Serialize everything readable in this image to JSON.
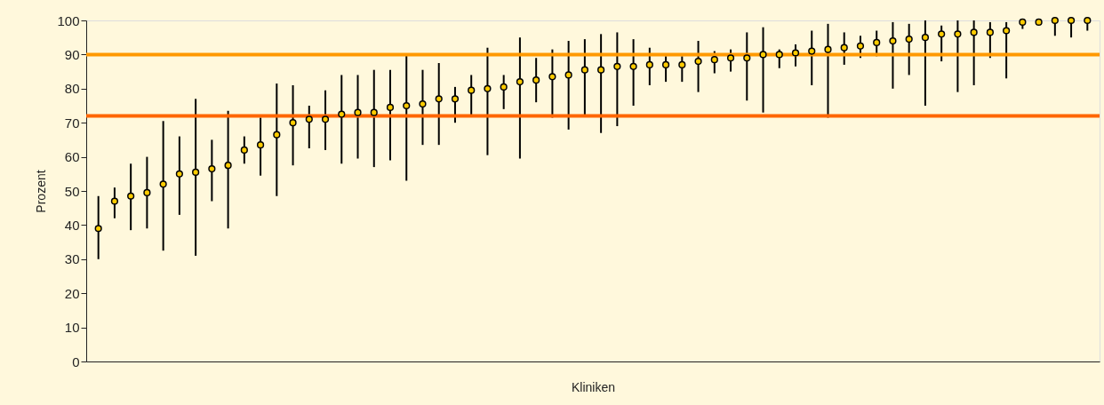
{
  "chart_data": {
    "type": "scatter",
    "xlabel": "Kliniken",
    "ylabel": "Prozent",
    "categories": [
      null,
      null,
      null,
      null,
      null,
      null,
      null,
      null,
      null,
      null,
      null,
      null,
      null,
      null,
      null,
      null,
      null,
      null,
      null,
      null,
      null,
      null,
      null,
      null,
      null,
      null,
      null,
      null,
      null,
      null,
      null,
      null,
      null,
      null,
      null,
      null,
      null,
      null,
      null,
      null,
      null,
      null,
      null,
      null,
      null,
      null,
      null,
      null,
      null,
      null,
      null,
      null,
      null,
      null,
      null,
      null,
      null,
      null,
      null,
      null,
      null,
      null
    ],
    "series": [
      {
        "color": "#ffcc00",
        "values": [
          39,
          47,
          48.5,
          49.5,
          52,
          55,
          55.5,
          56.5,
          57.5,
          62,
          63.5,
          66.5,
          70,
          71,
          71,
          72.5,
          73,
          73,
          74.5,
          75,
          75.5,
          77,
          77,
          79.5,
          80,
          80.5,
          82,
          82.5,
          83.5,
          84,
          85.5,
          85.5,
          86.5,
          86.5,
          87,
          87,
          87,
          88,
          88.5,
          89,
          89,
          90,
          90,
          90.5,
          91,
          91.5,
          92,
          92.5,
          93.5,
          94,
          94.5,
          95,
          96,
          96,
          96.5,
          96.5,
          97,
          99.5,
          99.5,
          100,
          100,
          100
        ],
        "errors": [
          [
            30,
            48.5
          ],
          [
            42,
            51
          ],
          [
            38.5,
            58
          ],
          [
            39,
            60
          ],
          [
            32.5,
            70.5
          ],
          [
            43,
            66
          ],
          [
            31,
            77
          ],
          [
            47,
            65
          ],
          [
            39,
            73.5
          ],
          [
            58,
            66
          ],
          [
            54.5,
            71.5
          ],
          [
            48.5,
            81.5
          ],
          [
            57.5,
            81
          ],
          [
            62.5,
            75
          ],
          [
            62,
            79.5
          ],
          [
            58,
            84
          ],
          [
            59.5,
            84
          ],
          [
            57,
            85.5
          ],
          [
            59,
            85.5
          ],
          [
            53,
            90
          ],
          [
            63.5,
            85.5
          ],
          [
            63.5,
            87.5
          ],
          [
            70,
            80.5
          ],
          [
            72,
            84
          ],
          [
            60.5,
            92
          ],
          [
            74,
            84
          ],
          [
            59.5,
            95
          ],
          [
            76,
            89
          ],
          [
            71.5,
            91.5
          ],
          [
            68,
            94
          ],
          [
            72,
            94.5
          ],
          [
            67,
            96
          ],
          [
            69,
            96.5
          ],
          [
            75,
            94.5
          ],
          [
            81,
            92
          ],
          [
            82,
            89.5
          ],
          [
            82,
            89.5
          ],
          [
            79,
            94
          ],
          [
            84.5,
            91
          ],
          [
            85,
            91.5
          ],
          [
            76.5,
            96.5
          ],
          [
            73,
            98
          ],
          [
            86,
            91.5
          ],
          [
            86.5,
            93
          ],
          [
            81,
            97
          ],
          [
            71.5,
            99
          ],
          [
            87,
            96.5
          ],
          [
            89,
            95.5
          ],
          [
            89.5,
            97
          ],
          [
            80,
            99.5
          ],
          [
            84,
            99
          ],
          [
            75,
            100
          ],
          [
            88,
            98.5
          ],
          [
            79,
            100
          ],
          [
            81,
            100
          ],
          [
            89,
            99.5
          ],
          [
            83,
            99.5
          ],
          [
            97.5,
            100
          ],
          [
            99,
            100
          ],
          [
            95.5,
            100
          ],
          [
            95,
            100
          ],
          [
            97,
            100
          ]
        ]
      }
    ],
    "ylim": [
      0,
      100
    ],
    "yticks": [
      0,
      10,
      20,
      30,
      40,
      50,
      60,
      70,
      80,
      90,
      100
    ],
    "ref_lines": [
      {
        "axis": "y",
        "value": 90,
        "color": "#ff9900"
      },
      {
        "axis": "y",
        "value": 72,
        "color": "#ff6600"
      }
    ],
    "marker": "circle",
    "tick_labels": "y",
    "grid": false
  }
}
